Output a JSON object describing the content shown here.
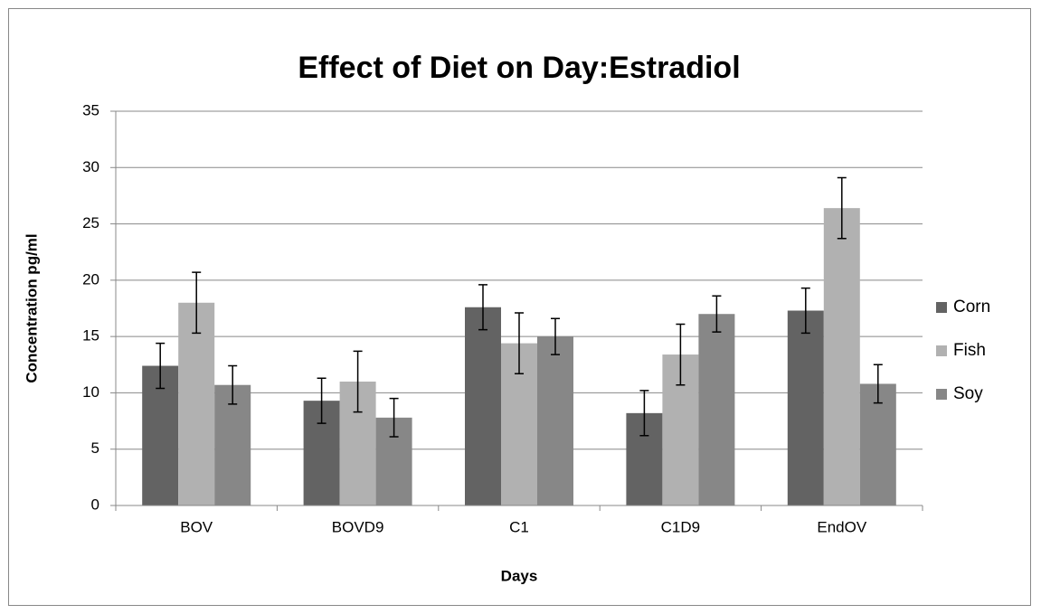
{
  "chart_data": {
    "type": "bar",
    "title": "Effect of Diet on Day:Estradiol",
    "x_label": "Days",
    "y_label": "Concentration pg/ml",
    "categories": [
      "BOV",
      "BOVD9",
      "C1",
      "C1D9",
      "EndOV"
    ],
    "series": [
      {
        "name": "Corn",
        "color": "#636363",
        "values": [
          12.4,
          9.3,
          17.6,
          8.2,
          17.3
        ],
        "errors": [
          2.0,
          2.0,
          2.0,
          2.0,
          2.0
        ]
      },
      {
        "name": "Fish",
        "color": "#b1b1b1",
        "values": [
          18.0,
          11.0,
          14.4,
          13.4,
          26.4
        ],
        "errors": [
          2.7,
          2.7,
          2.7,
          2.7,
          2.7
        ]
      },
      {
        "name": "Soy",
        "color": "#878787",
        "values": [
          10.7,
          7.8,
          15.0,
          17.0,
          10.8
        ],
        "errors": [
          1.7,
          1.7,
          1.6,
          1.6,
          1.7
        ]
      }
    ],
    "ylim": [
      0,
      35
    ],
    "yticks": [
      0,
      5,
      10,
      15,
      20,
      25,
      30,
      35
    ],
    "grid": true,
    "legend": "right"
  }
}
